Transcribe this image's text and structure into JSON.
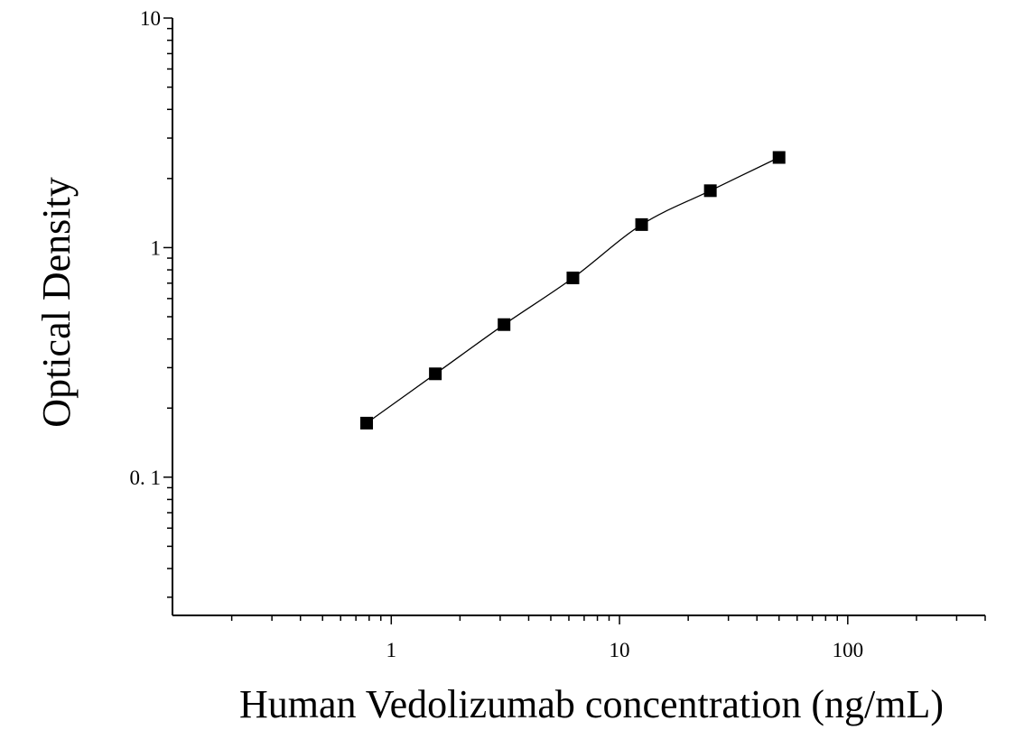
{
  "chart_data": {
    "type": "scatter",
    "xlabel": "Human Vedolizumab concentration (ng/mL)",
    "ylabel": "Optical Density",
    "xscale": "log",
    "yscale": "log",
    "xlim": [
      0.11,
      400
    ],
    "ylim": [
      0.025,
      10
    ],
    "x_ticks": [
      {
        "value": 1,
        "label": "1"
      },
      {
        "value": 10,
        "label": "10"
      },
      {
        "value": 100,
        "label": "100"
      }
    ],
    "y_ticks": [
      {
        "value": 0.1,
        "label": "0. 1"
      },
      {
        "value": 1,
        "label": "1"
      },
      {
        "value": 10,
        "label": "10"
      }
    ],
    "grid": false,
    "legend": false,
    "marker": "square",
    "fit_curve": true,
    "series": [
      {
        "x": [
          0.78,
          1.56,
          3.12,
          6.25,
          12.5,
          25,
          50
        ],
        "y": [
          0.172,
          0.282,
          0.462,
          0.738,
          1.26,
          1.77,
          2.47
        ]
      }
    ]
  }
}
